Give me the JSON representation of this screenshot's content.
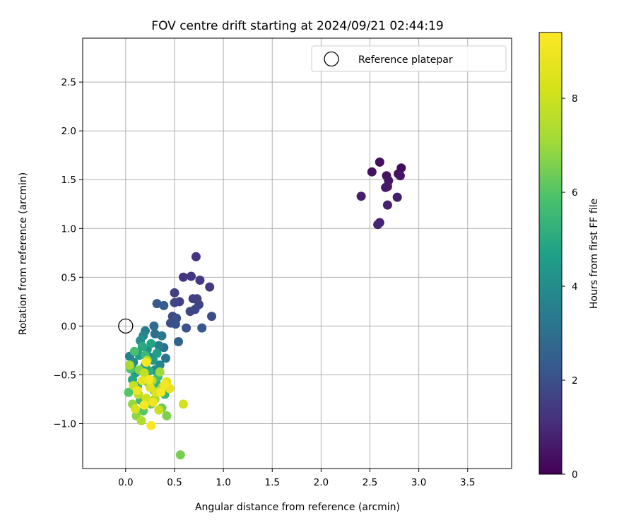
{
  "chart_data": {
    "type": "scatter",
    "title": "FOV centre drift starting at 2024/09/21 02:44:19",
    "xlabel": "Angular distance from reference (arcmin)",
    "ylabel": "Rotation from reference (arcmin)",
    "xlim": [
      -0.44,
      3.95
    ],
    "ylim": [
      -1.46,
      2.95
    ],
    "xticks": [
      0.0,
      0.5,
      1.0,
      1.5,
      2.0,
      2.5,
      3.0,
      3.5
    ],
    "xtick_labels": [
      "0.0",
      "0.5",
      "1.0",
      "1.5",
      "2.0",
      "2.5",
      "3.0",
      "3.5"
    ],
    "yticks": [
      -1.0,
      -0.5,
      0.0,
      0.5,
      1.0,
      1.5,
      2.0,
      2.5
    ],
    "ytick_labels": [
      "−1.0",
      "−0.5",
      "0.0",
      "0.5",
      "1.0",
      "1.5",
      "2.0",
      "2.5"
    ],
    "grid": true,
    "legend": {
      "placement": "top-right",
      "entries": [
        "Reference platepar"
      ]
    },
    "reference_point": {
      "x": 0.0,
      "y": 0.0
    },
    "colorbar": {
      "label": "Hours from first FF file",
      "colormap": "viridis",
      "range": [
        0,
        9.4
      ],
      "ticks": [
        0,
        2,
        4,
        6,
        8
      ],
      "tick_labels": [
        "0",
        "2",
        "4",
        "6",
        "8"
      ]
    },
    "points": [
      [
        2.82,
        1.62,
        0.2
      ],
      [
        2.6,
        1.68,
        0.3
      ],
      [
        2.52,
        1.58,
        0.4
      ],
      [
        2.79,
        1.56,
        0.3
      ],
      [
        2.67,
        1.54,
        0.4
      ],
      [
        2.69,
        1.49,
        0.5
      ],
      [
        2.81,
        1.54,
        0.5
      ],
      [
        2.66,
        1.42,
        0.6
      ],
      [
        2.68,
        1.43,
        0.6
      ],
      [
        2.41,
        1.33,
        0.7
      ],
      [
        2.78,
        1.32,
        0.7
      ],
      [
        2.68,
        1.24,
        0.8
      ],
      [
        2.6,
        1.06,
        0.8
      ],
      [
        2.58,
        1.04,
        0.9
      ],
      [
        0.72,
        0.71,
        1.2
      ],
      [
        0.59,
        0.5,
        1.3
      ],
      [
        0.67,
        0.51,
        1.3
      ],
      [
        0.76,
        0.47,
        1.4
      ],
      [
        0.86,
        0.4,
        1.4
      ],
      [
        0.5,
        0.34,
        1.5
      ],
      [
        0.69,
        0.28,
        1.5
      ],
      [
        0.73,
        0.28,
        1.6
      ],
      [
        0.55,
        0.25,
        1.6
      ],
      [
        0.5,
        0.24,
        1.7
      ],
      [
        0.75,
        0.22,
        1.7
      ],
      [
        0.66,
        0.15,
        1.8
      ],
      [
        0.71,
        0.17,
        1.8
      ],
      [
        0.88,
        0.1,
        1.9
      ],
      [
        0.48,
        0.1,
        1.9
      ],
      [
        0.52,
        0.08,
        2.0
      ],
      [
        0.46,
        0.03,
        2.0
      ],
      [
        0.51,
        0.02,
        2.1
      ],
      [
        0.62,
        -0.02,
        2.1
      ],
      [
        0.78,
        -0.02,
        2.2
      ],
      [
        0.32,
        0.23,
        2.3
      ],
      [
        0.39,
        0.21,
        2.4
      ],
      [
        0.54,
        -0.16,
        2.6
      ],
      [
        0.29,
        0.0,
        2.9
      ],
      [
        0.3,
        -0.08,
        3.0
      ],
      [
        0.39,
        -0.22,
        3.1
      ],
      [
        0.41,
        -0.33,
        3.2
      ],
      [
        0.37,
        -0.1,
        3.3
      ],
      [
        0.2,
        -0.05,
        3.4
      ],
      [
        0.34,
        -0.2,
        3.5
      ],
      [
        0.04,
        -0.31,
        3.6
      ],
      [
        0.12,
        -0.27,
        3.6
      ],
      [
        0.25,
        -0.32,
        3.7
      ],
      [
        0.35,
        -0.4,
        3.8
      ],
      [
        0.18,
        -0.1,
        3.8
      ],
      [
        0.08,
        -0.37,
        3.9
      ],
      [
        0.3,
        -0.45,
        4.0
      ],
      [
        0.15,
        -0.15,
        4.1
      ],
      [
        0.22,
        -0.24,
        4.2
      ],
      [
        0.06,
        -0.43,
        4.3
      ],
      [
        0.28,
        -0.35,
        4.4
      ],
      [
        0.14,
        -0.3,
        4.5
      ],
      [
        0.1,
        -0.48,
        4.5
      ],
      [
        0.32,
        -0.28,
        4.6
      ],
      [
        0.2,
        -0.4,
        4.7
      ],
      [
        0.26,
        -0.18,
        4.8
      ],
      [
        0.07,
        -0.55,
        4.9
      ],
      [
        0.17,
        -0.21,
        5.0
      ],
      [
        0.24,
        -0.46,
        5.1
      ],
      [
        0.12,
        -0.62,
        5.2
      ],
      [
        0.31,
        -0.58,
        5.3
      ],
      [
        0.4,
        -0.7,
        5.4
      ],
      [
        0.2,
        -0.3,
        5.5
      ],
      [
        0.15,
        -0.76,
        5.6
      ],
      [
        0.33,
        -0.52,
        5.7
      ],
      [
        0.09,
        -0.26,
        5.8
      ],
      [
        0.05,
        -0.44,
        5.9
      ],
      [
        0.03,
        -0.68,
        6.0
      ],
      [
        0.18,
        -0.87,
        6.1
      ],
      [
        0.29,
        -0.66,
        6.2
      ],
      [
        0.26,
        -0.8,
        6.3
      ],
      [
        0.37,
        -0.84,
        6.4
      ],
      [
        0.23,
        -0.58,
        6.5
      ],
      [
        0.42,
        -0.92,
        6.6
      ],
      [
        0.14,
        -0.45,
        6.7
      ],
      [
        0.56,
        -1.32,
        6.5
      ],
      [
        0.11,
        -0.92,
        6.8
      ],
      [
        0.07,
        -0.8,
        6.9
      ],
      [
        0.35,
        -0.47,
        7.0
      ],
      [
        0.22,
        -0.35,
        7.1
      ],
      [
        0.3,
        -0.75,
        7.2
      ],
      [
        0.04,
        -0.4,
        7.3
      ],
      [
        0.16,
        -0.97,
        7.4
      ],
      [
        0.27,
        -0.56,
        7.5
      ],
      [
        0.38,
        -0.62,
        7.6
      ],
      [
        0.13,
        -0.7,
        7.7
      ],
      [
        0.19,
        -0.48,
        7.8
      ],
      [
        0.08,
        -0.61,
        7.9
      ],
      [
        0.34,
        -0.86,
        8.0
      ],
      [
        0.21,
        -0.74,
        8.1
      ],
      [
        0.59,
        -0.8,
        8.2
      ],
      [
        0.1,
        -0.85,
        8.3
      ],
      [
        0.31,
        -0.68,
        8.4
      ],
      [
        0.25,
        -0.63,
        8.5
      ],
      [
        0.42,
        -0.57,
        8.6
      ],
      [
        0.17,
        -0.56,
        8.7
      ],
      [
        0.45,
        -0.64,
        8.8
      ],
      [
        0.12,
        -0.66,
        8.9
      ],
      [
        0.28,
        -0.78,
        9.0
      ],
      [
        0.4,
        -0.6,
        9.1
      ],
      [
        0.21,
        -0.37,
        9.2
      ],
      [
        0.19,
        -0.81,
        9.3
      ],
      [
        0.26,
        -1.02,
        9.4
      ],
      [
        0.36,
        -0.68,
        9.3
      ],
      [
        0.24,
        -0.55,
        9.2
      ]
    ]
  }
}
